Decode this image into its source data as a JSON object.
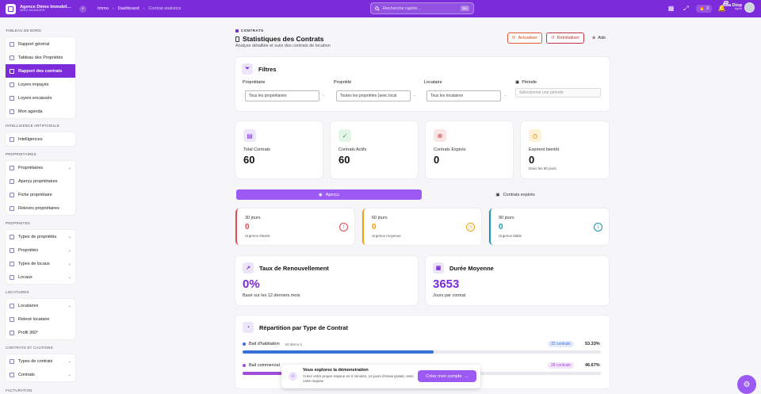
{
  "topbar": {
    "brand_name": "Agence Démo Immobil…",
    "brand_sub": "IMMO MANAGER",
    "breadcrumbs": [
      "Immo",
      "Dashboard",
      "Contrat-statistics"
    ],
    "search_placeholder": "Recherche rapide...",
    "search_shortcut": "⌘K",
    "flame_count": "3",
    "bell_badge": "62",
    "user_name": "Awa Diop",
    "user_role": "Agent"
  },
  "sidebar": {
    "sections": {
      "tableau": "TABLEAU DE BORD",
      "ia": "INTELLIGENCE ARTIFICIELLE",
      "proprietaires": "PROPRIETAIRES",
      "proprietes": "PROPRIETES",
      "locataires": "LOCATAIRES",
      "contrats": "CONTRATS ET CAUTIONS",
      "facturation": "FACTURATION"
    },
    "tableau_items": [
      "Rapport général",
      "Tableau des Propriétés",
      "Rapport des contrats",
      "Loyers impayés",
      "Loyers encaissés",
      "Mon agenda"
    ],
    "ia_items": [
      "Intelligences"
    ],
    "proprietaires_items": [
      "Propriétaires",
      "Aperçu propriétaires",
      "Fiche propriétaire",
      "Relevés propriétaires"
    ],
    "proprietes_items": [
      "Types de propriétés",
      "Propriétés",
      "Types de locaux",
      "Locaux"
    ],
    "locataires_items": [
      "Locataires",
      "Relevé locataire",
      "Profil 360°"
    ],
    "contrats_items": [
      "Types de contrats",
      "Contrats"
    ]
  },
  "header": {
    "kicker": "CONTRATS",
    "title": "Statistiques des Contrats",
    "subtitle": "Analyse détaillée et suivi des contrats de location",
    "refresh": "Actualiser",
    "reset": "Réinitialiser",
    "help": "Aide"
  },
  "filters": {
    "title": "Filtres",
    "owner_label": "Propriétaire",
    "owner_value": "Tous les propriétaires",
    "property_label": "Propriété",
    "property_value": "Toutes les propriétés (avec local",
    "tenant_label": "Locataire",
    "tenant_value": "Tous les locataires",
    "period_label": "Période",
    "period_placeholder": "Sélectionner une période",
    "dash": "-"
  },
  "stats": [
    {
      "label": "Total Contrats",
      "value": "60",
      "note": "",
      "icon": "document-icon",
      "bg": "#ede6fb",
      "fg": "#7b2bd9"
    },
    {
      "label": "Contrats Actifs",
      "value": "60",
      "note": "",
      "icon": "check-circle-icon",
      "bg": "#e3f6e6",
      "fg": "#2f9e44"
    },
    {
      "label": "Contrats Expirés",
      "value": "0",
      "note": "",
      "icon": "x-circle-icon",
      "bg": "#fbe4e4",
      "fg": "#d9363e"
    },
    {
      "label": "Expirent bientôt",
      "value": "0",
      "note": "Dans les 60 jours",
      "icon": "clock-icon",
      "bg": "#fdf2d6",
      "fg": "#d48b0b"
    }
  ],
  "tabs": {
    "overview": "Aperçu",
    "expired": "Contrats expirés"
  },
  "urgency": [
    {
      "days": "30 jours",
      "value": "0",
      "level": "Urgence élevée",
      "color": "#e5484d",
      "glyph": "!"
    },
    {
      "days": "60 jours",
      "value": "0",
      "level": "Urgence moyenne",
      "color": "#f59f0b",
      "glyph": "◷"
    },
    {
      "days": "90 jours",
      "value": "0",
      "level": "Urgence faible",
      "color": "#1c95b5",
      "glyph": "i"
    }
  ],
  "renewal": {
    "title": "Taux de Renouvellement",
    "value": "0%",
    "caption": "Basé sur les 12 derniers mois"
  },
  "duration": {
    "title": "Durée Moyenne",
    "value": "3653",
    "caption": "Jours par contrat"
  },
  "distribution": {
    "title": "Répartition par Type de Contrat",
    "rows": [
      {
        "name": "Bail d'habitation",
        "code": "tct-demo-1",
        "count": "32 contrats",
        "pct": "53.33%",
        "fraction": 0.5333,
        "color": "#3b6fd8"
      },
      {
        "name": "Bail commercial",
        "code": "",
        "count": "28 contrats",
        "pct": "46.67%",
        "fraction": 0.4667,
        "color": "#a24bd6"
      }
    ]
  },
  "toast": {
    "title": "Vous explorez la démonstration",
    "text": "Créez votre propre espace en 3 minutes, 14 jours d'essai gratuit, sans carte requise.",
    "button": "Créer mon compte"
  }
}
